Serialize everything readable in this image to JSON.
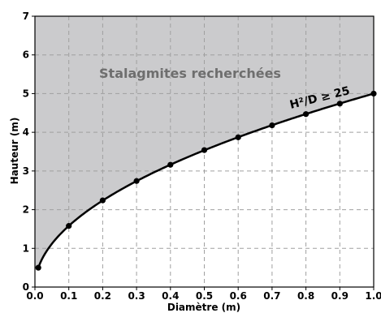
{
  "chart_data": {
    "type": "line",
    "xlabel": "Diamètre (m)",
    "ylabel": "Hauteur (m)",
    "xlim": [
      0.0,
      1.0
    ],
    "ylim": [
      0,
      7
    ],
    "x_ticks": [
      "0.0",
      "0.1",
      "0.2",
      "0.3",
      "0.4",
      "0.5",
      "0.6",
      "0.7",
      "0.8",
      "0.9",
      "1.0"
    ],
    "y_ticks": [
      "0",
      "1",
      "2",
      "3",
      "4",
      "5",
      "6",
      "7"
    ],
    "grid": true,
    "region_label": "Stalagmites recherchées",
    "curve_label": "H²/D ≥ 25",
    "series": [
      {
        "x": [
          0.01,
          0.1,
          0.2,
          0.3,
          0.4,
          0.5,
          0.6,
          0.7,
          0.8,
          0.9,
          1.0
        ],
        "values": [
          0.5,
          1.58,
          2.24,
          2.74,
          3.16,
          3.54,
          3.87,
          4.18,
          4.47,
          4.74,
          5.0
        ]
      }
    ],
    "fill_color": "#cbcbcd",
    "line_color": "#000000",
    "grid_color": "#a0a0a0"
  }
}
